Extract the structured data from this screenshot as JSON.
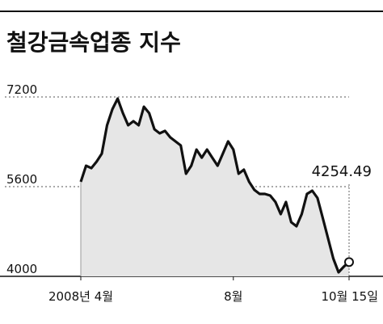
{
  "chart_data": {
    "type": "line",
    "title": "철강금속업종 지수",
    "categories": [
      "2008년 4월",
      null,
      null,
      null,
      null,
      null,
      null,
      null,
      null,
      null,
      null,
      null,
      null,
      null,
      null,
      null,
      null,
      null,
      null,
      null,
      null,
      null,
      null,
      null,
      null,
      null,
      null,
      null,
      null,
      "8월",
      null,
      null,
      null,
      null,
      null,
      null,
      null,
      null,
      null,
      null,
      null,
      null,
      null,
      null,
      null,
      null,
      null,
      null,
      null,
      null,
      null,
      "10월 15일"
    ],
    "series": [
      {
        "name": "철강금속업종 지수",
        "color": "#111111",
        "values": [
          5686,
          5974,
          5930,
          6046,
          6190,
          6695,
          6983,
          7170,
          6911,
          6695,
          6767,
          6695,
          7026,
          6911,
          6623,
          6551,
          6594,
          6479,
          6407,
          6335,
          5830,
          5974,
          6262,
          6118,
          6262,
          6118,
          5974,
          6190,
          6407,
          6262,
          5830,
          5902,
          5686,
          5542,
          5470,
          5470,
          5441,
          5326,
          5110,
          5326,
          4966,
          4893,
          5110,
          5470,
          5528,
          5398,
          5038,
          4677,
          4317,
          4072,
          4173,
          4254.49
        ]
      }
    ],
    "ylim": [
      4000,
      7200
    ],
    "yticks": [
      4000,
      5600,
      7200
    ],
    "grid": true
  }
}
